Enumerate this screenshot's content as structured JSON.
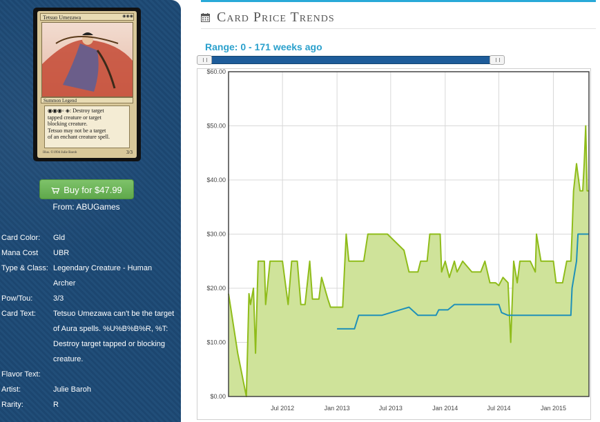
{
  "card": {
    "name": "Tetsuo Umezawa",
    "mana_symbols": "◉◉◉",
    "type_line": "Summon Legend",
    "text_lines": [
      "◉◉◉◦ ◈: Destroy target",
      "tapped creature or target",
      "blocking creature.",
      "Tetsuo may not be a target",
      "of an enchant creature spell."
    ],
    "artist_credit": "Illus. ©1994 Julie Baroh",
    "power_toughness": "3/3"
  },
  "buy": {
    "label": "Buy for $47.99",
    "from": "From: ABUGames"
  },
  "details": [
    {
      "label": "Card Color:",
      "value": "Gld"
    },
    {
      "label": "Mana Cost",
      "value": "UBR"
    },
    {
      "label": "Type & Class:",
      "value": "Legendary Creature - Human Archer"
    },
    {
      "label": "Pow/Tou:",
      "value": "3/3"
    },
    {
      "label": "Card Text:",
      "value": "Tetsuo Umezawa can't be the target of Aura spells. %U%B%B%R, %T: Destroy target tapped or blocking creature."
    },
    {
      "label": "Flavor Text:",
      "value": ""
    },
    {
      "label": "Artist:",
      "value": "Julie Baroh"
    },
    {
      "label": "Rarity:",
      "value": "R"
    }
  ],
  "header": {
    "title": "Card Price Trends",
    "icon": "calendar-icon",
    "accent": "#29a9d8"
  },
  "range": {
    "label": "Range: 0 - 171 weeks ago",
    "min": 0,
    "max": 171,
    "track_min": 0,
    "track_max": 171
  },
  "chart_data": {
    "type": "line",
    "title": "",
    "xlabel": "",
    "ylabel": "",
    "ylim": [
      0,
      60
    ],
    "yticks": [
      "$0.00",
      "$10.00",
      "$20.00",
      "$30.00",
      "$40.00",
      "$50.00",
      "$60.00"
    ],
    "ytick_values": [
      0,
      10,
      20,
      30,
      40,
      50,
      60
    ],
    "xticks": [
      "Jul 2012",
      "Jan 2013",
      "Jul 2013",
      "Jan 2014",
      "Jul 2014",
      "Jan 2015"
    ],
    "xtick_values": [
      "2012-07-01",
      "2013-01-01",
      "2013-07-01",
      "2014-01-01",
      "2014-07-01",
      "2015-01-01"
    ],
    "xlim": [
      "2012-01-01",
      "2015-05-01"
    ],
    "grid": true,
    "legend": "none",
    "series": [
      {
        "color": "#8fbc1a",
        "fill": "#cfe39a",
        "points": [
          [
            "2012-01-01",
            19
          ],
          [
            "2012-02-01",
            8
          ],
          [
            "2012-03-01",
            0
          ],
          [
            "2012-03-10",
            19
          ],
          [
            "2012-03-15",
            17
          ],
          [
            "2012-03-25",
            20
          ],
          [
            "2012-04-01",
            8
          ],
          [
            "2012-04-10",
            25
          ],
          [
            "2012-05-01",
            25
          ],
          [
            "2012-05-05",
            17
          ],
          [
            "2012-05-20",
            25
          ],
          [
            "2012-06-15",
            25
          ],
          [
            "2012-07-01",
            25
          ],
          [
            "2012-07-20",
            17
          ],
          [
            "2012-08-01",
            25
          ],
          [
            "2012-08-20",
            25
          ],
          [
            "2012-09-01",
            17
          ],
          [
            "2012-09-15",
            17
          ],
          [
            "2012-10-01",
            25
          ],
          [
            "2012-10-10",
            18
          ],
          [
            "2012-11-01",
            18
          ],
          [
            "2012-11-10",
            22
          ],
          [
            "2012-12-01",
            18
          ],
          [
            "2012-12-10",
            16.5
          ],
          [
            "2013-01-01",
            16.5
          ],
          [
            "2013-01-20",
            16.5
          ],
          [
            "2013-02-01",
            30
          ],
          [
            "2013-02-10",
            25
          ],
          [
            "2013-04-01",
            25
          ],
          [
            "2013-04-15",
            30
          ],
          [
            "2013-06-20",
            30
          ],
          [
            "2013-08-15",
            27
          ],
          [
            "2013-09-01",
            23
          ],
          [
            "2013-10-01",
            23
          ],
          [
            "2013-10-10",
            25
          ],
          [
            "2013-11-01",
            25
          ],
          [
            "2013-11-10",
            30
          ],
          [
            "2013-12-15",
            30
          ],
          [
            "2013-12-20",
            23
          ],
          [
            "2014-01-01",
            25
          ],
          [
            "2014-01-15",
            22
          ],
          [
            "2014-02-01",
            25
          ],
          [
            "2014-02-10",
            23
          ],
          [
            "2014-03-01",
            25
          ],
          [
            "2014-04-01",
            23
          ],
          [
            "2014-05-01",
            23
          ],
          [
            "2014-05-15",
            25
          ],
          [
            "2014-06-01",
            21
          ],
          [
            "2014-06-20",
            21
          ],
          [
            "2014-07-01",
            20.5
          ],
          [
            "2014-07-15",
            22
          ],
          [
            "2014-08-01",
            21
          ],
          [
            "2014-08-10",
            10
          ],
          [
            "2014-08-20",
            25
          ],
          [
            "2014-09-01",
            21
          ],
          [
            "2014-09-10",
            25
          ],
          [
            "2014-10-01",
            25
          ],
          [
            "2014-10-15",
            25
          ],
          [
            "2014-11-01",
            23
          ],
          [
            "2014-11-05",
            30
          ],
          [
            "2014-11-20",
            25
          ],
          [
            "2014-12-01",
            25
          ],
          [
            "2015-01-01",
            25
          ],
          [
            "2015-01-10",
            21
          ],
          [
            "2015-02-01",
            21
          ],
          [
            "2015-02-15",
            25
          ],
          [
            "2015-03-01",
            25
          ],
          [
            "2015-03-05",
            30
          ],
          [
            "2015-03-10",
            38
          ],
          [
            "2015-03-20",
            43
          ],
          [
            "2015-04-01",
            38
          ],
          [
            "2015-04-10",
            38
          ],
          [
            "2015-04-15",
            43
          ],
          [
            "2015-04-20",
            50
          ],
          [
            "2015-04-25",
            38
          ],
          [
            "2015-05-01",
            38
          ]
        ]
      },
      {
        "color": "#1e90b8",
        "fill": "none",
        "points": [
          [
            "2013-01-01",
            12.5
          ],
          [
            "2013-03-01",
            12.5
          ],
          [
            "2013-03-15",
            15
          ],
          [
            "2013-06-01",
            15
          ],
          [
            "2013-08-01",
            16
          ],
          [
            "2013-09-01",
            16.5
          ],
          [
            "2013-10-01",
            15
          ],
          [
            "2013-11-01",
            15
          ],
          [
            "2013-12-01",
            15
          ],
          [
            "2013-12-10",
            16
          ],
          [
            "2014-01-10",
            16
          ],
          [
            "2014-02-01",
            17
          ],
          [
            "2014-07-01",
            17
          ],
          [
            "2014-07-10",
            15.5
          ],
          [
            "2014-08-01",
            15
          ],
          [
            "2014-10-01",
            15
          ],
          [
            "2015-02-01",
            15
          ],
          [
            "2015-03-01",
            15
          ],
          [
            "2015-03-05",
            20
          ],
          [
            "2015-03-20",
            25
          ],
          [
            "2015-03-25",
            30
          ],
          [
            "2015-05-01",
            30
          ]
        ]
      }
    ]
  }
}
